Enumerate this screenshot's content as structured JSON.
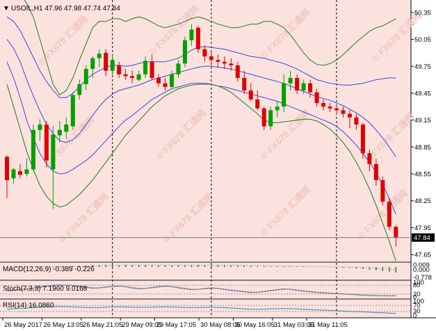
{
  "main": {
    "title_arrow": "▼",
    "title": "USOIL,H1  47.96 47.98 47.74 47.84",
    "current_price_label": "47.84",
    "watermark_text": "© FX678 汇通网"
  },
  "price_axis": {
    "ticks": [
      "50.35",
      "50.05",
      "49.75",
      "49.45",
      "49.15",
      "48.85",
      "48.55",
      "48.25",
      "47.95",
      "47.65"
    ]
  },
  "time_axis": {
    "ticks": [
      "26 May 2017",
      "26 May 13:05",
      "26 May 21:05",
      "29 May 09:05",
      "29 May 17:05",
      "30 May 08:05",
      "30 May 16:05",
      "31 May 03:05",
      "31 May 11:05"
    ]
  },
  "macd": {
    "label": "MACD(12,26,9) -0.389 -0.226",
    "axis": [
      "0.009",
      "0.000",
      "-0.778"
    ]
  },
  "stoch": {
    "label": "Stoch(7,3,3) 7.1960 9.0168",
    "axis": [
      "100",
      "80",
      "20",
      "0"
    ]
  },
  "rsi": {
    "label": "RSI(14) 16.0860",
    "axis": [
      "100",
      "70",
      "30",
      "0"
    ]
  },
  "colors": {
    "bg": "#fbe2de",
    "bull": "#00a000",
    "bear": "#e00000",
    "band_outer": "#1f7a1f",
    "band_inner": "#3c46d8",
    "grid": "#000000",
    "macd_hist": "#1a7a1a",
    "macd_signal": "#a0a0a0",
    "stoch_main": "#1e90c8",
    "stoch_signal": "#e04040",
    "rsi": "#1e90c8"
  },
  "chart_data": {
    "type": "candlestick",
    "symbol": "USOIL",
    "timeframe": "H1",
    "ylim": [
      47.62,
      50.45
    ],
    "ohlc": [
      [
        48.74,
        48.76,
        48.28,
        48.48
      ],
      [
        48.5,
        48.62,
        48.44,
        48.6
      ],
      [
        48.58,
        48.66,
        48.5,
        48.54
      ],
      [
        48.55,
        48.72,
        48.52,
        48.6
      ],
      [
        48.6,
        49.1,
        48.58,
        49.04
      ],
      [
        49.04,
        49.16,
        48.92,
        49.1
      ],
      [
        49.1,
        49.14,
        48.62,
        48.7
      ],
      [
        48.6,
        49.08,
        48.16,
        48.99
      ],
      [
        48.98,
        49.14,
        48.9,
        49.04
      ],
      [
        49.02,
        49.18,
        48.94,
        49.1
      ],
      [
        49.08,
        49.46,
        49.04,
        49.43
      ],
      [
        49.43,
        49.6,
        49.38,
        49.55
      ],
      [
        49.55,
        49.76,
        49.48,
        49.72
      ],
      [
        49.72,
        49.86,
        49.62,
        49.84
      ],
      [
        49.84,
        49.94,
        49.74,
        49.89
      ],
      [
        49.9,
        49.94,
        49.64,
        49.7
      ],
      [
        49.7,
        49.88,
        49.64,
        49.82
      ],
      [
        49.76,
        49.8,
        49.62,
        49.66
      ],
      [
        49.66,
        49.72,
        49.6,
        49.64
      ],
      [
        49.64,
        49.7,
        49.56,
        49.62
      ],
      [
        49.6,
        49.7,
        49.58,
        49.66
      ],
      [
        49.66,
        49.86,
        49.62,
        49.81
      ],
      [
        49.8,
        49.88,
        49.6,
        49.62
      ],
      [
        49.62,
        49.66,
        49.52,
        49.56
      ],
      [
        49.56,
        49.62,
        49.48,
        49.52
      ],
      [
        49.52,
        49.7,
        49.5,
        49.66
      ],
      [
        49.66,
        49.82,
        49.62,
        49.78
      ],
      [
        49.78,
        50.08,
        49.74,
        50.04
      ],
      [
        50.04,
        50.22,
        49.98,
        50.16
      ],
      [
        50.18,
        50.2,
        49.9,
        49.94
      ],
      [
        49.94,
        49.98,
        49.8,
        49.86
      ],
      [
        49.86,
        49.92,
        49.76,
        49.82
      ],
      [
        49.82,
        49.88,
        49.74,
        49.8
      ],
      [
        49.8,
        49.86,
        49.72,
        49.78
      ],
      [
        49.78,
        49.84,
        49.7,
        49.76
      ],
      [
        49.76,
        49.8,
        49.58,
        49.62
      ],
      [
        49.62,
        49.7,
        49.44,
        49.48
      ],
      [
        49.48,
        49.56,
        49.36,
        49.38
      ],
      [
        49.38,
        49.48,
        49.26,
        49.28
      ],
      [
        49.28,
        49.3,
        49.04,
        49.08
      ],
      [
        49.08,
        49.3,
        49.04,
        49.26
      ],
      [
        49.26,
        49.36,
        49.18,
        49.3
      ],
      [
        49.3,
        49.66,
        49.24,
        49.56
      ],
      [
        49.56,
        49.7,
        49.48,
        49.62
      ],
      [
        49.62,
        49.66,
        49.44,
        49.48
      ],
      [
        49.48,
        49.6,
        49.44,
        49.56
      ],
      [
        49.56,
        49.6,
        49.4,
        49.46
      ],
      [
        49.46,
        49.5,
        49.3,
        49.34
      ],
      [
        49.34,
        49.38,
        49.26,
        49.3
      ],
      [
        49.3,
        49.34,
        49.24,
        49.28
      ],
      [
        49.28,
        49.32,
        49.22,
        49.26
      ],
      [
        49.26,
        49.3,
        49.18,
        49.22
      ],
      [
        49.22,
        49.26,
        49.06,
        49.18
      ],
      [
        49.18,
        49.22,
        49.04,
        49.1
      ],
      [
        49.1,
        49.12,
        48.72,
        48.78
      ],
      [
        48.78,
        48.82,
        48.58,
        48.66
      ],
      [
        48.66,
        48.72,
        48.42,
        48.48
      ],
      [
        48.48,
        48.52,
        48.2,
        48.24
      ],
      [
        48.24,
        48.28,
        47.92,
        47.96
      ],
      [
        47.96,
        47.98,
        47.74,
        47.84
      ]
    ],
    "bollinger": {
      "outer_upper": [
        50.55,
        50.6,
        50.56,
        50.45,
        50.3,
        50.05,
        49.8,
        49.55,
        49.43,
        49.48,
        49.62,
        49.82,
        50.0,
        50.18,
        50.25,
        50.25,
        50.28,
        50.28,
        50.25,
        50.28,
        50.3,
        50.28,
        50.24,
        50.2,
        50.18,
        50.2,
        50.22,
        50.25,
        50.28,
        50.3,
        50.28,
        50.25,
        50.22,
        50.2,
        50.18,
        50.18,
        50.2,
        50.22,
        50.22,
        50.25,
        50.25,
        50.22,
        50.18,
        50.1,
        50.0,
        49.9,
        49.82,
        49.77,
        49.76,
        49.78,
        49.82,
        49.88,
        49.95,
        50.02,
        50.08,
        50.14,
        50.18,
        50.2,
        50.24,
        50.28
      ],
      "inner_upper": [
        50.3,
        50.25,
        50.15,
        50.0,
        49.85,
        49.7,
        49.58,
        49.48,
        49.4,
        49.4,
        49.45,
        49.52,
        49.6,
        49.66,
        49.7,
        49.74,
        49.76,
        49.76,
        49.75,
        49.76,
        49.78,
        49.8,
        49.8,
        49.8,
        49.8,
        49.82,
        49.84,
        49.88,
        49.93,
        49.96,
        49.97,
        49.96,
        49.95,
        49.94,
        49.92,
        49.9,
        49.88,
        49.86,
        49.85,
        49.84,
        49.82,
        49.8,
        49.78,
        49.75,
        49.72,
        49.68,
        49.64,
        49.6,
        49.58,
        49.56,
        49.55,
        49.54,
        49.54,
        49.55,
        49.56,
        49.58,
        49.6,
        49.61,
        49.62,
        49.62
      ],
      "middle": [
        50.05,
        49.95,
        49.8,
        49.6,
        49.42,
        49.25,
        49.1,
        49.0,
        48.92,
        48.9,
        48.93,
        49.0,
        49.1,
        49.2,
        49.3,
        49.38,
        49.44,
        49.48,
        49.5,
        49.52,
        49.54,
        49.57,
        49.6,
        49.62,
        49.64,
        49.66,
        49.68,
        49.7,
        49.72,
        49.74,
        49.75,
        49.75,
        49.74,
        49.73,
        49.72,
        49.7,
        49.68,
        49.66,
        49.64,
        49.62,
        49.6,
        49.58,
        49.56,
        49.53,
        49.5,
        49.47,
        49.44,
        49.41,
        49.39,
        49.37,
        49.34,
        49.31,
        49.27,
        49.23,
        49.18,
        49.12,
        49.04,
        48.95,
        48.85,
        48.74
      ],
      "inner_lower": [
        49.8,
        49.62,
        49.4,
        49.15,
        48.95,
        48.78,
        48.66,
        48.58,
        48.55,
        48.56,
        48.6,
        48.65,
        48.7,
        48.76,
        48.84,
        48.92,
        49.0,
        49.08,
        49.15,
        49.2,
        49.26,
        49.32,
        49.38,
        49.42,
        49.46,
        49.5,
        49.52,
        49.54,
        49.56,
        49.56,
        49.56,
        49.55,
        49.53,
        49.52,
        49.5,
        49.48,
        49.46,
        49.44,
        49.42,
        49.4,
        49.38,
        49.36,
        49.33,
        49.3,
        49.27,
        49.24,
        49.21,
        49.18,
        49.15,
        49.12,
        49.08,
        49.02,
        48.95,
        48.87,
        48.78,
        48.68,
        48.56,
        48.43,
        48.28,
        48.1
      ],
      "outer_lower": [
        49.55,
        49.3,
        49.05,
        48.8,
        48.6,
        48.42,
        48.3,
        48.22,
        48.18,
        48.2,
        48.26,
        48.32,
        48.4,
        48.48,
        48.58,
        48.68,
        48.78,
        48.88,
        48.98,
        49.06,
        49.14,
        49.22,
        49.3,
        49.36,
        49.42,
        49.46,
        49.5,
        49.52,
        49.54,
        49.55,
        49.55,
        49.55,
        49.53,
        49.5,
        49.46,
        49.4,
        49.34,
        49.28,
        49.22,
        49.15,
        49.12,
        49.12,
        49.13,
        49.14,
        49.15,
        49.16,
        49.16,
        49.14,
        49.1,
        49.05,
        48.98,
        48.9,
        48.8,
        48.68,
        48.54,
        48.38,
        48.2,
        48.0,
        47.8,
        47.58
      ]
    },
    "macd_hist": [
      0.02,
      0.01,
      0.0,
      -0.01,
      0.0,
      0.01,
      0.02,
      0.03,
      0.05,
      0.06,
      0.08,
      0.1,
      0.12,
      0.14,
      0.15,
      0.16,
      0.16,
      0.16,
      0.15,
      0.14,
      0.14,
      0.14,
      0.13,
      0.12,
      0.12,
      0.12,
      0.12,
      0.13,
      0.14,
      0.15,
      0.15,
      0.14,
      0.13,
      0.12,
      0.11,
      0.1,
      0.09,
      0.08,
      0.06,
      0.05,
      0.04,
      0.04,
      0.04,
      0.04,
      0.04,
      0.03,
      0.02,
      0.01,
      0.0,
      -0.02,
      -0.03,
      -0.05,
      -0.07,
      -0.1,
      -0.14,
      -0.18,
      -0.23,
      -0.28,
      -0.33,
      -0.389
    ],
    "stoch_main": [
      40,
      45,
      50,
      55,
      60,
      70,
      75,
      80,
      82,
      80,
      78,
      70,
      65,
      60,
      62,
      68,
      72,
      75,
      70,
      60,
      55,
      58,
      65,
      72,
      75,
      70,
      62,
      55,
      50,
      52,
      58,
      62,
      58,
      50,
      45,
      40,
      35,
      30,
      32,
      38,
      45,
      50,
      55,
      52,
      45,
      40,
      35,
      30,
      28,
      25,
      22,
      20,
      18,
      15,
      12,
      10,
      9,
      8,
      7.5,
      7.196
    ],
    "stoch_signal": [
      42,
      44,
      48,
      53,
      58,
      64,
      70,
      76,
      80,
      80,
      79,
      74,
      68,
      63,
      62,
      65,
      70,
      73,
      72,
      66,
      60,
      58,
      61,
      67,
      72,
      71,
      66,
      59,
      54,
      52,
      55,
      59,
      59,
      54,
      48,
      43,
      38,
      33,
      32,
      35,
      41,
      47,
      52,
      53,
      49,
      43,
      38,
      33,
      30,
      27,
      24,
      21,
      19,
      17,
      14,
      12,
      10,
      9,
      8.5,
      9.0168
    ],
    "rsi": [
      45,
      48,
      50,
      52,
      55,
      58,
      60,
      62,
      63,
      62,
      60,
      58,
      56,
      55,
      56,
      58,
      60,
      61,
      60,
      58,
      57,
      57,
      58,
      60,
      61,
      60,
      58,
      56,
      55,
      56,
      57,
      58,
      57,
      55,
      53,
      50,
      47,
      45,
      44,
      45,
      47,
      48,
      49,
      48,
      46,
      44,
      42,
      40,
      38,
      36,
      34,
      32,
      30,
      28,
      26,
      24,
      22,
      20,
      18,
      16.086
    ],
    "price_axis_ticks": [
      50.35,
      50.05,
      49.75,
      49.45,
      49.15,
      48.85,
      48.55,
      48.25,
      47.95,
      47.65
    ],
    "current_price": 47.84,
    "time_labels": [
      "26 May 2017",
      "26 May 13:05",
      "26 May 21:05",
      "29 May 09:05",
      "29 May 17:05",
      "30 May 08:05",
      "30 May 16:05",
      "31 May 03:05",
      "31 May 11:05"
    ],
    "session_separator_bars": [
      16,
      31,
      50
    ],
    "indicators": [
      "Bollinger Bands (two sets)",
      "MACD(12,26,9)",
      "Stoch(7,3,3)",
      "RSI(14)"
    ]
  }
}
